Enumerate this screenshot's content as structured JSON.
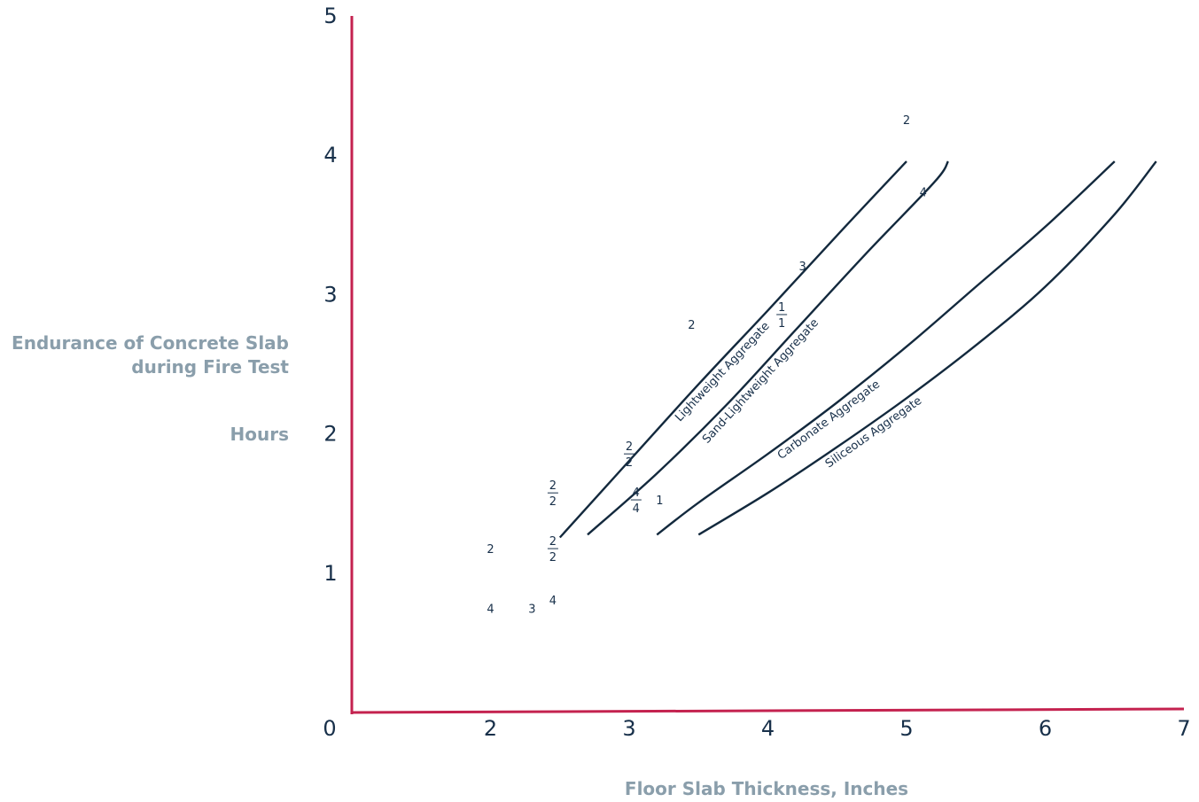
{
  "colors": {
    "axis": "#c4224f",
    "curve": "#13293d",
    "text": "#18304a",
    "axis_title": "#8a9eab"
  },
  "chart_data": {
    "type": "line",
    "xlabel": "Floor Slab Thickness, Inches",
    "ylabel": [
      "Endurance of Concrete Slab",
      "during Fire Test",
      "Hours"
    ],
    "origin_label": "0",
    "xlim": [
      1,
      7
    ],
    "ylim": [
      0,
      5
    ],
    "x_ticks": [
      2,
      3,
      4,
      5,
      6,
      7
    ],
    "y_ticks": [
      1,
      2,
      3,
      4,
      5
    ],
    "grid": false,
    "legend": "none",
    "series": [
      {
        "name": "Lightweight Aggregate",
        "x": [
          2.5,
          3.0,
          3.5,
          4.0,
          4.5,
          5.0
        ],
        "y": [
          1.25,
          1.8,
          2.35,
          2.88,
          3.42,
          3.95
        ]
      },
      {
        "name": "Sand-Lightweight Aggregate",
        "x": [
          2.7,
          3.2,
          3.7,
          4.2,
          4.7,
          5.2,
          5.3
        ],
        "y": [
          1.27,
          1.71,
          2.2,
          2.74,
          3.28,
          3.8,
          3.95
        ]
      },
      {
        "name": "Carbonate Aggregate",
        "x": [
          3.2,
          3.5,
          4.0,
          4.5,
          5.0,
          5.5,
          6.0,
          6.5
        ],
        "y": [
          1.27,
          1.5,
          1.85,
          2.22,
          2.62,
          3.05,
          3.48,
          3.95
        ]
      },
      {
        "name": "Siliceous Aggregate",
        "x": [
          3.5,
          4.0,
          4.5,
          5.0,
          5.5,
          6.0,
          6.5,
          6.8
        ],
        "y": [
          1.27,
          1.57,
          1.9,
          2.25,
          2.63,
          3.05,
          3.57,
          3.95
        ]
      }
    ],
    "annotations": [
      {
        "text": "2",
        "x": 5.0,
        "y": 4.25
      },
      {
        "text": "4",
        "x": 5.12,
        "y": 3.73
      },
      {
        "text": "3",
        "x": 4.25,
        "y": 3.2
      },
      {
        "text": "1",
        "x": 4.1,
        "y": 2.85,
        "fraction_bottom": "1"
      },
      {
        "text": "2",
        "x": 3.45,
        "y": 2.78
      },
      {
        "text": "2",
        "x": 3.0,
        "y": 1.85,
        "fraction_bottom": "2"
      },
      {
        "text": "4",
        "x": 3.05,
        "y": 1.52,
        "fraction_bottom": "4"
      },
      {
        "text": "1",
        "x": 3.22,
        "y": 1.52
      },
      {
        "text": "2",
        "x": 2.45,
        "y": 1.57,
        "fraction_bottom": "2"
      },
      {
        "text": "2",
        "x": 2.45,
        "y": 1.17,
        "fraction_bottom": "2"
      },
      {
        "text": "2",
        "x": 2.0,
        "y": 1.17
      },
      {
        "text": "4",
        "x": 2.0,
        "y": 0.74
      },
      {
        "text": "3",
        "x": 2.3,
        "y": 0.74
      },
      {
        "text": "4",
        "x": 2.45,
        "y": 0.8
      }
    ]
  }
}
